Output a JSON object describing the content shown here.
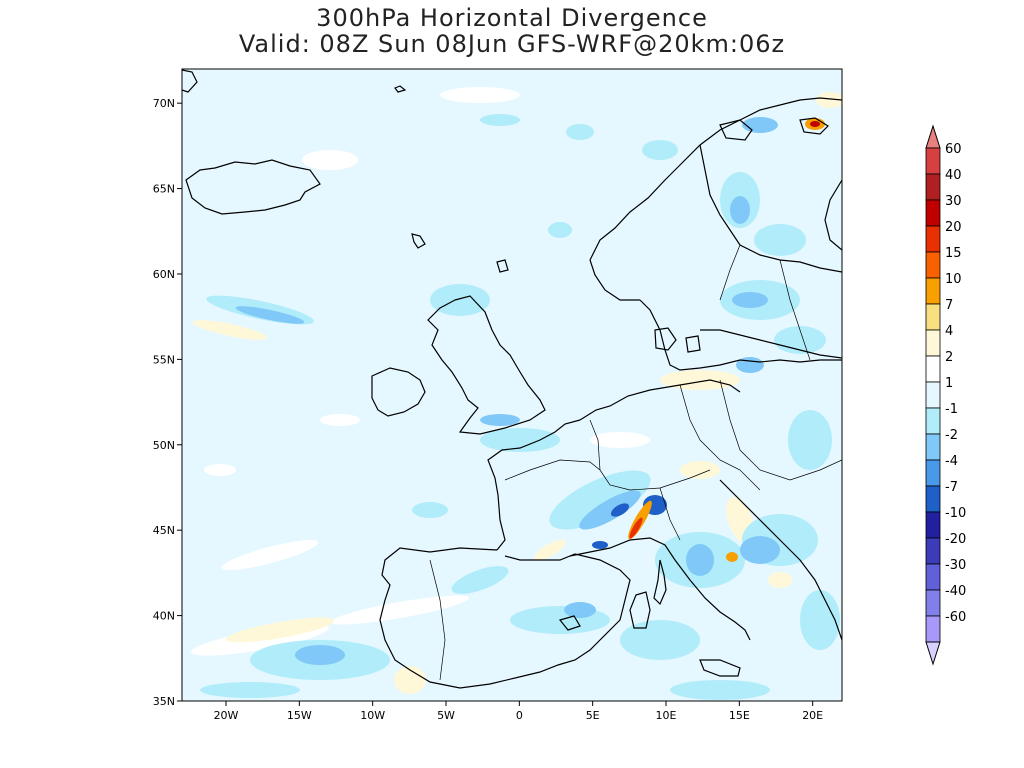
{
  "header": {
    "title_line1": "300hPa Horizontal Divergence",
    "title_line2": "Valid: 08Z Sun 08Jun GFS-WRF@20km:06z"
  },
  "map": {
    "lon_range": [
      -23,
      22
    ],
    "lat_range": [
      35,
      72
    ],
    "lon_ticks": [
      {
        "value": -20,
        "label": "20W"
      },
      {
        "value": -15,
        "label": "15W"
      },
      {
        "value": -10,
        "label": "10W"
      },
      {
        "value": -5,
        "label": "5W"
      },
      {
        "value": 0,
        "label": "0"
      },
      {
        "value": 5,
        "label": "5E"
      },
      {
        "value": 10,
        "label": "10E"
      },
      {
        "value": 15,
        "label": "15E"
      },
      {
        "value": 20,
        "label": "20E"
      }
    ],
    "lat_ticks": [
      {
        "value": 35,
        "label": "35N"
      },
      {
        "value": 40,
        "label": "40N"
      },
      {
        "value": 45,
        "label": "45N"
      },
      {
        "value": 50,
        "label": "50N"
      },
      {
        "value": 55,
        "label": "55N"
      },
      {
        "value": 60,
        "label": "60N"
      },
      {
        "value": 65,
        "label": "65N"
      },
      {
        "value": 70,
        "label": "70N"
      }
    ],
    "background_color": "#e6f8ff",
    "coastline_color": "#000000"
  },
  "colorbar": {
    "labels": [
      "60",
      "40",
      "30",
      "20",
      "15",
      "10",
      "7",
      "4",
      "2",
      "1",
      "-1",
      "-2",
      "-4",
      "-7",
      "-10",
      "-20",
      "-30",
      "-40",
      "-60"
    ],
    "colors": [
      "#e88080",
      "#d64040",
      "#b02020",
      "#c00000",
      "#e83000",
      "#f86000",
      "#f8a000",
      "#f8e080",
      "#fff8d8",
      "#ffffff",
      "#e6f8ff",
      "#b0ecfa",
      "#80c8f8",
      "#4a98e8",
      "#1f60c8",
      "#2020a0",
      "#3c3cb8",
      "#6060d8",
      "#8080e8",
      "#a898f8",
      "#d8d0ff"
    ]
  }
}
